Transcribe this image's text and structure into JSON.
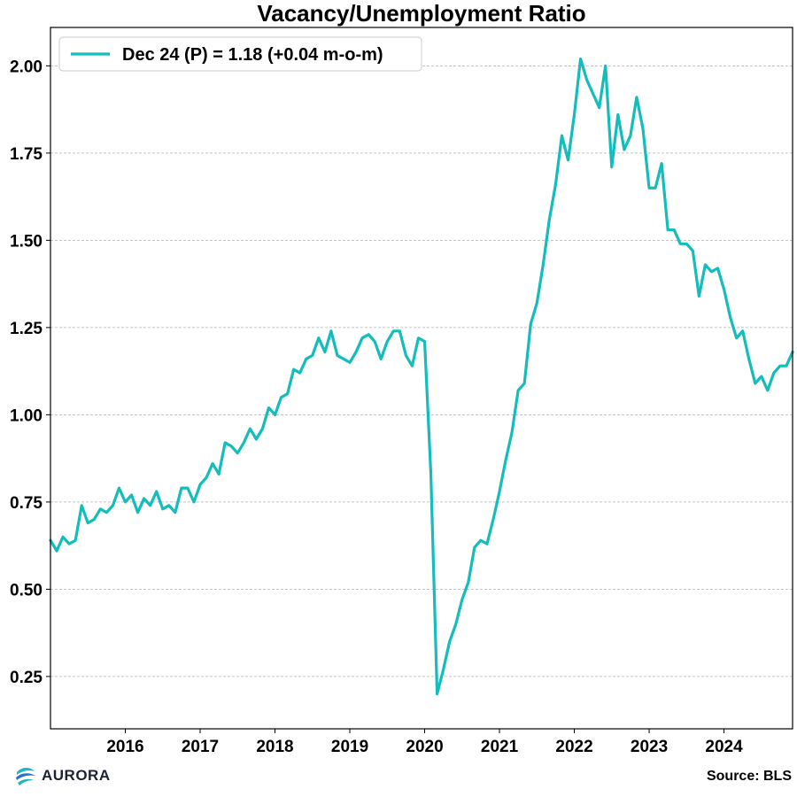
{
  "chart_data": {
    "type": "line",
    "title": "Vacancy/Unemployment Ratio",
    "xlabel": "",
    "ylabel": "",
    "xlim": [
      "2015-01",
      "2024-12"
    ],
    "ylim": [
      0.1,
      2.11
    ],
    "yticks": [
      0.25,
      0.5,
      0.75,
      1.0,
      1.25,
      1.5,
      1.75,
      2.0
    ],
    "ytick_labels": [
      "0.25",
      "0.50",
      "0.75",
      "1.00",
      "1.25",
      "1.50",
      "1.75",
      "2.00"
    ],
    "xticks": [
      "2016",
      "2017",
      "2018",
      "2019",
      "2020",
      "2021",
      "2022",
      "2023",
      "2024"
    ],
    "grid": "y-dashed",
    "legend_position": "top-left",
    "series": [
      {
        "name": "Dec 24 (P) = 1.18 (+0.04 m-o-m)",
        "color": "#13BDBB",
        "x": [
          "2015-01",
          "2015-02",
          "2015-03",
          "2015-04",
          "2015-05",
          "2015-06",
          "2015-07",
          "2015-08",
          "2015-09",
          "2015-10",
          "2015-11",
          "2015-12",
          "2016-01",
          "2016-02",
          "2016-03",
          "2016-04",
          "2016-05",
          "2016-06",
          "2016-07",
          "2016-08",
          "2016-09",
          "2016-10",
          "2016-11",
          "2016-12",
          "2017-01",
          "2017-02",
          "2017-03",
          "2017-04",
          "2017-05",
          "2017-06",
          "2017-07",
          "2017-08",
          "2017-09",
          "2017-10",
          "2017-11",
          "2017-12",
          "2018-01",
          "2018-02",
          "2018-03",
          "2018-04",
          "2018-05",
          "2018-06",
          "2018-07",
          "2018-08",
          "2018-09",
          "2018-10",
          "2018-11",
          "2018-12",
          "2019-01",
          "2019-02",
          "2019-03",
          "2019-04",
          "2019-05",
          "2019-06",
          "2019-07",
          "2019-08",
          "2019-09",
          "2019-10",
          "2019-11",
          "2019-12",
          "2020-01",
          "2020-02",
          "2020-03",
          "2020-04",
          "2020-05",
          "2020-06",
          "2020-07",
          "2020-08",
          "2020-09",
          "2020-10",
          "2020-11",
          "2020-12",
          "2021-01",
          "2021-02",
          "2021-03",
          "2021-04",
          "2021-05",
          "2021-06",
          "2021-07",
          "2021-08",
          "2021-09",
          "2021-10",
          "2021-11",
          "2021-12",
          "2022-01",
          "2022-02",
          "2022-03",
          "2022-04",
          "2022-05",
          "2022-06",
          "2022-07",
          "2022-08",
          "2022-09",
          "2022-10",
          "2022-11",
          "2022-12",
          "2023-01",
          "2023-02",
          "2023-03",
          "2023-04",
          "2023-05",
          "2023-06",
          "2023-07",
          "2023-08",
          "2023-09",
          "2023-10",
          "2023-11",
          "2023-12",
          "2024-01",
          "2024-02",
          "2024-03",
          "2024-04",
          "2024-05",
          "2024-06",
          "2024-07",
          "2024-08",
          "2024-09",
          "2024-10",
          "2024-11",
          "2024-12"
        ],
        "values": [
          0.64,
          0.61,
          0.65,
          0.63,
          0.64,
          0.74,
          0.69,
          0.7,
          0.73,
          0.72,
          0.74,
          0.79,
          0.75,
          0.77,
          0.72,
          0.76,
          0.74,
          0.78,
          0.73,
          0.74,
          0.72,
          0.79,
          0.79,
          0.75,
          0.8,
          0.82,
          0.86,
          0.83,
          0.92,
          0.91,
          0.89,
          0.92,
          0.96,
          0.93,
          0.96,
          1.02,
          1.0,
          1.05,
          1.06,
          1.13,
          1.12,
          1.16,
          1.17,
          1.22,
          1.18,
          1.24,
          1.17,
          1.16,
          1.15,
          1.18,
          1.22,
          1.23,
          1.21,
          1.16,
          1.21,
          1.24,
          1.24,
          1.17,
          1.14,
          1.22,
          1.21,
          0.83,
          0.2,
          0.27,
          0.35,
          0.4,
          0.47,
          0.52,
          0.62,
          0.64,
          0.63,
          0.7,
          0.78,
          0.87,
          0.95,
          1.07,
          1.09,
          1.26,
          1.32,
          1.43,
          1.56,
          1.66,
          1.8,
          1.73,
          1.86,
          2.02,
          1.96,
          1.92,
          1.88,
          2.0,
          1.71,
          1.86,
          1.76,
          1.8,
          1.91,
          1.82,
          1.65,
          1.65,
          1.72,
          1.53,
          1.53,
          1.49,
          1.49,
          1.47,
          1.34,
          1.43,
          1.41,
          1.42,
          1.36,
          1.28,
          1.22,
          1.24,
          1.16,
          1.09,
          1.11,
          1.07,
          1.12,
          1.14,
          1.14,
          1.18
        ]
      }
    ]
  },
  "footer": {
    "logo_text": "AURORA",
    "source": "Source: BLS"
  },
  "colors": {
    "line": "#13BDBB",
    "logo_blue": "#2a6fd6",
    "logo_teal": "#1fb6c4"
  }
}
